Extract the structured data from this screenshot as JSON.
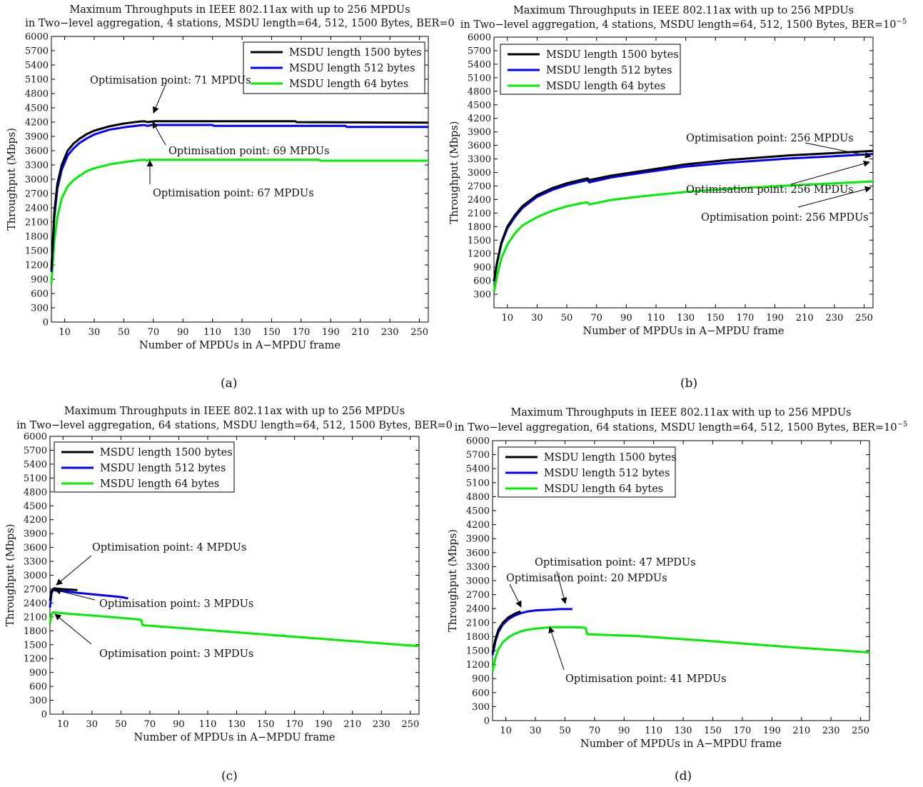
{
  "chart_data": [
    {
      "panel": "(a)",
      "type": "line",
      "title": [
        "Maximum Throughputs in IEEE 802.11ax with up to 256 MPDUs",
        "in Two−level aggregation, 4 stations, MSDU length=64, 512, 1500 Bytes, BER=0"
      ],
      "title_sup": "",
      "xlabel": "Number of MPDUs in A−MPDU frame",
      "ylabel": "Throughput (Mbps)",
      "xlim": [
        1,
        256
      ],
      "ylim": [
        0,
        6000
      ],
      "xticks": [
        10,
        30,
        50,
        70,
        90,
        110,
        130,
        150,
        170,
        190,
        210,
        230,
        250
      ],
      "yticks": [
        0,
        300,
        600,
        900,
        1200,
        1500,
        1800,
        2100,
        2400,
        2700,
        3000,
        3300,
        3600,
        3900,
        4200,
        4500,
        4800,
        5100,
        5400,
        5700,
        6000
      ],
      "legend_position": "top-right",
      "series": [
        {
          "name": "MSDU length 1500 bytes",
          "color": "#000000",
          "x": [
            1,
            3,
            5,
            8,
            12,
            16,
            20,
            25,
            30,
            40,
            50,
            60,
            64,
            66,
            71,
            100,
            166,
            167,
            256
          ],
          "y": [
            1100,
            2300,
            2900,
            3300,
            3600,
            3750,
            3850,
            3950,
            4020,
            4110,
            4170,
            4210,
            4220,
            4200,
            4220,
            4220,
            4220,
            4200,
            4190
          ]
        },
        {
          "name": "MSDU length 512 bytes",
          "color": "#0000ff",
          "x": [
            1,
            3,
            5,
            8,
            12,
            16,
            20,
            25,
            30,
            40,
            50,
            60,
            64,
            66,
            69,
            110,
            111,
            200,
            201,
            256
          ],
          "y": [
            1050,
            2200,
            2800,
            3200,
            3500,
            3650,
            3760,
            3860,
            3940,
            4040,
            4090,
            4130,
            4140,
            4120,
            4140,
            4140,
            4120,
            4120,
            4100,
            4100
          ]
        },
        {
          "name": "MSDU length 64 bytes",
          "color": "#00ee00",
          "x": [
            1,
            3,
            5,
            8,
            12,
            16,
            20,
            25,
            30,
            40,
            50,
            60,
            64,
            66,
            67,
            182,
            183,
            256
          ],
          "y": [
            800,
            1700,
            2200,
            2600,
            2850,
            2980,
            3070,
            3170,
            3230,
            3310,
            3360,
            3400,
            3410,
            3390,
            3410,
            3410,
            3390,
            3390
          ]
        }
      ],
      "annotations": [
        {
          "text": "Optimisation point: 71 MPDUs",
          "x": 71,
          "y": 4220
        },
        {
          "text": "Optimisation point: 69 MPDUs",
          "x": 69,
          "y": 4140
        },
        {
          "text": "Optimisation point: 67 MPDUs",
          "x": 67,
          "y": 3410
        }
      ]
    },
    {
      "panel": "(b)",
      "type": "line",
      "title": [
        "Maximum Throughputs in IEEE 802.11ax with up to 256 MPDUs",
        "in Two−level aggregation, 4 stations, MSDU length=64, 512, 1500 Bytes, BER=10"
      ],
      "title_sup": "−5",
      "xlabel": "Number of MPDUs in A−MPDU frame",
      "ylabel": "Throughput (Mbps)",
      "xlim": [
        1,
        256
      ],
      "ylim": [
        0,
        6000
      ],
      "xticks": [
        10,
        30,
        50,
        70,
        90,
        110,
        130,
        150,
        170,
        190,
        210,
        230,
        250
      ],
      "yticks": [
        300,
        600,
        900,
        1200,
        1500,
        1800,
        2100,
        2400,
        2700,
        3000,
        3300,
        3600,
        3900,
        4200,
        4500,
        4800,
        5100,
        5400,
        5700,
        6000
      ],
      "legend_position": "top-left",
      "series": [
        {
          "name": "MSDU length 1500 bytes",
          "color": "#000000",
          "x": [
            1,
            3,
            6,
            10,
            15,
            20,
            30,
            40,
            50,
            60,
            64,
            65,
            80,
            100,
            130,
            160,
            200,
            230,
            256
          ],
          "y": [
            600,
            1000,
            1450,
            1800,
            2050,
            2250,
            2500,
            2650,
            2760,
            2840,
            2870,
            2830,
            2930,
            3030,
            3180,
            3280,
            3380,
            3430,
            3480
          ]
        },
        {
          "name": "MSDU length 512 bytes",
          "color": "#0000ff",
          "x": [
            1,
            3,
            6,
            10,
            15,
            20,
            30,
            40,
            50,
            60,
            64,
            65,
            80,
            100,
            130,
            160,
            200,
            230,
            256
          ],
          "y": [
            580,
            980,
            1420,
            1760,
            2010,
            2210,
            2460,
            2610,
            2720,
            2800,
            2830,
            2780,
            2890,
            2990,
            3130,
            3220,
            3310,
            3360,
            3410
          ]
        },
        {
          "name": "MSDU length 64 bytes",
          "color": "#00ee00",
          "x": [
            1,
            3,
            6,
            10,
            15,
            20,
            30,
            40,
            50,
            60,
            64,
            65,
            80,
            100,
            130,
            160,
            200,
            230,
            256
          ],
          "y": [
            350,
            700,
            1100,
            1400,
            1650,
            1820,
            2010,
            2150,
            2250,
            2320,
            2340,
            2290,
            2390,
            2470,
            2570,
            2640,
            2710,
            2760,
            2800
          ]
        }
      ],
      "annotations": [
        {
          "text": "Optimisation point: 256 MPDUs",
          "x": 256,
          "y": 3480
        },
        {
          "text": "Optimisation point: 256 MPDUs",
          "x": 256,
          "y": 3410
        },
        {
          "text": "Optimisation point: 256 MPDUs",
          "x": 256,
          "y": 2800
        }
      ]
    },
    {
      "panel": "(c)",
      "type": "line",
      "title": [
        "Maximum Throughputs in IEEE 802.11ax with up to 256 MPDUs",
        "in Two−level aggregation, 64 stations, MSDU length=64, 512, 1500 Bytes, BER=0"
      ],
      "title_sup": "",
      "xlabel": "Number of MPDUs in A−MPDU frame",
      "ylabel": "Throughput (Mbps)",
      "xlim": [
        1,
        256
      ],
      "ylim": [
        0,
        6000
      ],
      "xticks": [
        10,
        30,
        50,
        70,
        90,
        110,
        130,
        150,
        170,
        190,
        210,
        230,
        250
      ],
      "yticks": [
        0,
        300,
        600,
        900,
        1200,
        1500,
        1800,
        2100,
        2400,
        2700,
        3000,
        3300,
        3600,
        3900,
        4200,
        4500,
        4800,
        5100,
        5400,
        5700,
        6000
      ],
      "legend_position": "top-left",
      "series": [
        {
          "name": "MSDU length 1500 bytes",
          "color": "#000000",
          "x": [
            1,
            2,
            3,
            4,
            6,
            10,
            15,
            20
          ],
          "y": [
            2450,
            2650,
            2700,
            2720,
            2710,
            2700,
            2690,
            2680
          ]
        },
        {
          "name": "MSDU length 512 bytes",
          "color": "#0000ff",
          "x": [
            1,
            2,
            3,
            5,
            10,
            20,
            30,
            40,
            50,
            55
          ],
          "y": [
            2300,
            2600,
            2680,
            2670,
            2660,
            2620,
            2590,
            2560,
            2530,
            2500
          ]
        },
        {
          "name": "MSDU length 64 bytes",
          "color": "#00ee00",
          "x": [
            1,
            2,
            3,
            10,
            30,
            50,
            64,
            65,
            100,
            150,
            200,
            256
          ],
          "y": [
            1950,
            2150,
            2200,
            2180,
            2130,
            2080,
            2040,
            1920,
            1840,
            1720,
            1600,
            1470
          ]
        }
      ],
      "annotations": [
        {
          "text": "Optimisation point: 4 MPDUs",
          "x": 4,
          "y": 2720
        },
        {
          "text": "Optimisation point: 3 MPDUs",
          "x": 3,
          "y": 2680
        },
        {
          "text": "Optimisation point: 3 MPDUs",
          "x": 3,
          "y": 2200
        }
      ]
    },
    {
      "panel": "(d)",
      "type": "line",
      "title": [
        "Maximum Throughputs in IEEE 802.11ax with up to 256 MPDUs",
        "in Two−level aggregation, 64 stations, MSDU length=64, 512, 1500 Bytes, BER=10"
      ],
      "title_sup": "−5",
      "xlabel": "Number of MPDUs in A−MPDU frame",
      "ylabel": "Throughput (Mbps)",
      "xlim": [
        1,
        256
      ],
      "ylim": [
        0,
        6000
      ],
      "xticks": [
        10,
        30,
        50,
        70,
        90,
        110,
        130,
        150,
        170,
        190,
        210,
        230,
        250
      ],
      "yticks": [
        0,
        300,
        600,
        900,
        1200,
        1500,
        1800,
        2100,
        2400,
        2700,
        3000,
        3300,
        3600,
        3900,
        4200,
        4500,
        4800,
        5100,
        5400,
        5700,
        6000
      ],
      "legend_position": "top-left",
      "series": [
        {
          "name": "MSDU length 1500 bytes",
          "color": "#000000",
          "x": [
            1,
            3,
            5,
            8,
            12,
            16,
            20
          ],
          "y": [
            1450,
            1750,
            1950,
            2100,
            2220,
            2290,
            2340
          ]
        },
        {
          "name": "MSDU length 512 bytes",
          "color": "#0000ff",
          "x": [
            1,
            3,
            5,
            8,
            12,
            16,
            20,
            25,
            30,
            35,
            40,
            47,
            55
          ],
          "y": [
            1400,
            1700,
            1900,
            2060,
            2180,
            2250,
            2300,
            2340,
            2360,
            2370,
            2375,
            2390,
            2390
          ]
        },
        {
          "name": "MSDU length 64 bytes",
          "color": "#00ee00",
          "x": [
            1,
            3,
            5,
            8,
            12,
            16,
            20,
            25,
            30,
            35,
            41,
            55,
            64,
            65,
            100,
            150,
            200,
            256
          ],
          "y": [
            1050,
            1350,
            1530,
            1680,
            1790,
            1860,
            1910,
            1950,
            1970,
            1985,
            2000,
            2000,
            1990,
            1850,
            1810,
            1700,
            1580,
            1460
          ]
        }
      ],
      "annotations": [
        {
          "text": "Optimisation point: 47 MPDUs",
          "x": 47,
          "y": 2390
        },
        {
          "text": "Optimisation point: 20 MPDUs",
          "x": 20,
          "y": 2340
        },
        {
          "text": "Optimisation point: 41 MPDUs",
          "x": 41,
          "y": 2000
        }
      ]
    }
  ]
}
